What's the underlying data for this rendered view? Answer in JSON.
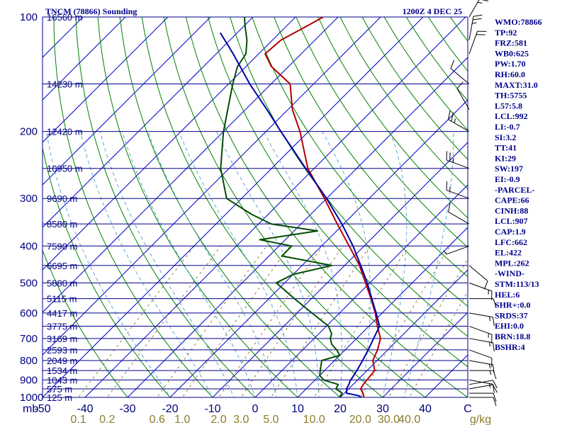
{
  "header": {
    "station": "TNCM (78866) Sounding",
    "time": "1200Z  4 DEC 25"
  },
  "indices": [
    "WMO:78866",
    "TP:92",
    "FRZ:581",
    "WB0:625",
    "PW:1.70",
    "RH:60.0",
    "MAXT:31.0",
    "TH:5755",
    "L57:5.8",
    "LCL:992",
    "LI:-0.7",
    "SI:3.2",
    "TT:41",
    "KI:29",
    "SW:197",
    "EI:-0.9",
    "-PARCEL-",
    "CAPE:66",
    "CINH:88",
    "LCL:907",
    "CAP:1.9",
    "LFC:662",
    "EL:422",
    "MPL:262",
    "-WIND-",
    "STM:113/13",
    "HEL:6",
    "SHR+:0.0",
    "SRDS:37",
    "EHI:0.0",
    "BRN:18.8",
    "BSHR:4"
  ],
  "colors": {
    "isobar": "#00008b",
    "isotherm": "#0000cd",
    "dry_adiabat": "#008000",
    "moist_adiabat": "#5fa8d8",
    "mixing_ratio": "#8b7d2a",
    "temperature": "#b20000",
    "dewpoint": "#004d00",
    "parcel": "#0000aa",
    "text": "#00008b"
  },
  "chart_data": {
    "type": "line",
    "chart_kind": "skew-T log-P sounding",
    "pressure_range_hPa": [
      100,
      1000
    ],
    "pressure_axis": "log",
    "temperature_range_C_at_1000hPa": [
      -50,
      50
    ],
    "pressure_labels": [
      "100",
      "200",
      "300",
      "400",
      "500",
      "600",
      "700",
      "800",
      "900",
      "1000"
    ],
    "pressure_levels": [
      100,
      200,
      300,
      400,
      500,
      600,
      700,
      800,
      900,
      1000
    ],
    "temperature_labels": [
      "mb",
      "-50",
      "-40",
      "-30",
      "-20",
      "-10",
      "0",
      "10",
      "20",
      "30",
      "40",
      "C"
    ],
    "temperature_ticks": [
      -50,
      -40,
      -30,
      -20,
      -10,
      0,
      10,
      20,
      30,
      40
    ],
    "mixing_ratio_labels": [
      "0.1",
      "0.2",
      "0.6",
      "1.0",
      "2.0",
      "3.0",
      "5.0",
      "10.0",
      "20.0",
      "30.0",
      "40.0",
      "g/kg"
    ],
    "mixing_ratio_values": [
      0.1,
      0.2,
      0.6,
      1.0,
      2.0,
      3.0,
      5.0,
      10.0,
      20.0,
      30.0,
      40.0
    ],
    "height_levels": [
      {
        "p": 100,
        "label": "16560 m"
      },
      {
        "p": 150,
        "label": "14230 m"
      },
      {
        "p": 200,
        "label": "12420 m"
      },
      {
        "p": 250,
        "label": "10950 m"
      },
      {
        "p": 300,
        "label": "9690 m"
      },
      {
        "p": 350,
        "label": "8580 m"
      },
      {
        "p": 400,
        "label": "7590 m"
      },
      {
        "p": 450,
        "label": "6695 m"
      },
      {
        "p": 500,
        "label": "5880 m"
      },
      {
        "p": 550,
        "label": "5115 m"
      },
      {
        "p": 600,
        "label": "4417 m"
      },
      {
        "p": 650,
        "label": "3775 m"
      },
      {
        "p": 700,
        "label": "3169 m"
      },
      {
        "p": 750,
        "label": "2593 m"
      },
      {
        "p": 800,
        "label": "2049 m"
      },
      {
        "p": 850,
        "label": "1534 m"
      },
      {
        "p": 900,
        "label": "1043 m"
      },
      {
        "p": 950,
        "label": "575 m"
      },
      {
        "p": 1000,
        "label": "125 m"
      }
    ],
    "dry_adiabats_theta_C": [
      -30,
      -20,
      -10,
      0,
      10,
      20,
      30,
      40,
      50,
      60,
      70,
      80,
      90,
      100,
      110,
      120,
      130,
      140,
      150,
      160,
      170,
      180,
      190
    ],
    "moist_adiabats_theta_w_C": [
      -20,
      -10,
      -5,
      0,
      5,
      10,
      15,
      20,
      25,
      30,
      35
    ],
    "series": [
      {
        "name": "Temperature",
        "color": "#b20000",
        "points": [
          [
            1013,
            27.0
          ],
          [
            1000,
            25.6
          ],
          [
            975,
            24.4
          ],
          [
            950,
            22.8
          ],
          [
            925,
            22.4
          ],
          [
            900,
            22.2
          ],
          [
            875,
            22.0
          ],
          [
            850,
            21.8
          ],
          [
            800,
            19.0
          ],
          [
            750,
            17.6
          ],
          [
            700,
            15.6
          ],
          [
            650,
            12.0
          ],
          [
            600,
            8.4
          ],
          [
            550,
            4.0
          ],
          [
            500,
            -1.0
          ],
          [
            450,
            -6.5
          ],
          [
            400,
            -13.5
          ],
          [
            350,
            -21.5
          ],
          [
            300,
            -30.5
          ],
          [
            250,
            -41.5
          ],
          [
            200,
            -52.0
          ],
          [
            175,
            -59.0
          ],
          [
            150,
            -65.5
          ],
          [
            135,
            -74.0
          ],
          [
            125,
            -78.5
          ],
          [
            115,
            -78.0
          ],
          [
            105,
            -75.0
          ],
          [
            100,
            -73.5
          ]
        ]
      },
      {
        "name": "Dewpoint",
        "color": "#004d00",
        "points": [
          [
            1013,
            21.0
          ],
          [
            1000,
            19.8
          ],
          [
            975,
            19.5
          ],
          [
            950,
            17.0
          ],
          [
            925,
            16.5
          ],
          [
            900,
            12.0
          ],
          [
            875,
            10.0
          ],
          [
            850,
            9.0
          ],
          [
            825,
            8.0
          ],
          [
            800,
            7.0
          ],
          [
            775,
            10.0
          ],
          [
            750,
            8.0
          ],
          [
            725,
            5.5
          ],
          [
            700,
            3.8
          ],
          [
            680,
            3.0
          ],
          [
            650,
            0.5
          ],
          [
            600,
            -6.5
          ],
          [
            550,
            -14.0
          ],
          [
            500,
            -22.0
          ],
          [
            475,
            -20.0
          ],
          [
            450,
            -13.0
          ],
          [
            425,
            -27.0
          ],
          [
            400,
            -27.0
          ],
          [
            385,
            -36.0
          ],
          [
            365,
            -24.5
          ],
          [
            350,
            -37.0
          ],
          [
            330,
            -44.0
          ],
          [
            300,
            -53.5
          ],
          [
            250,
            -62.0
          ],
          [
            200,
            -70.0
          ],
          [
            150,
            -79.0
          ],
          [
            135,
            -82.0
          ],
          [
            125,
            -83.0
          ],
          [
            115,
            -86.0
          ],
          [
            105,
            -90.0
          ],
          [
            100,
            -92.0
          ]
        ]
      },
      {
        "name": "Parcel",
        "color": "#0000aa",
        "points": [
          [
            1000,
            25.0
          ],
          [
            990,
            24.0
          ],
          [
            975,
            20.5
          ],
          [
            950,
            19.5
          ],
          [
            925,
            19.0
          ],
          [
            907,
            18.5
          ],
          [
            850,
            17.6
          ],
          [
            800,
            16.6
          ],
          [
            750,
            15.4
          ],
          [
            700,
            14.0
          ],
          [
            650,
            12.5
          ],
          [
            600,
            8.6
          ],
          [
            550,
            4.2
          ],
          [
            500,
            -0.6
          ],
          [
            450,
            -6.2
          ],
          [
            400,
            -12.6
          ],
          [
            350,
            -20.4
          ],
          [
            300,
            -30.0
          ],
          [
            250,
            -42.0
          ],
          [
            200,
            -56.5
          ],
          [
            175,
            -65.0
          ],
          [
            150,
            -75.0
          ],
          [
            125,
            -86.0
          ],
          [
            110,
            -94.0
          ]
        ]
      }
    ],
    "wind_barbs": [
      {
        "p": 1000,
        "dir": 90,
        "spd": 10
      },
      {
        "p": 975,
        "dir": 90,
        "spd": 12
      },
      {
        "p": 950,
        "dir": 80,
        "spd": 12
      },
      {
        "p": 925,
        "dir": 80,
        "spd": 10
      },
      {
        "p": 900,
        "dir": 100,
        "spd": 15
      },
      {
        "p": 850,
        "dir": 90,
        "spd": 15
      },
      {
        "p": 800,
        "dir": 100,
        "spd": 15
      },
      {
        "p": 750,
        "dir": 110,
        "spd": 12
      },
      {
        "p": 700,
        "dir": 100,
        "spd": 15
      },
      {
        "p": 650,
        "dir": 110,
        "spd": 15
      },
      {
        "p": 600,
        "dir": 100,
        "spd": 15
      },
      {
        "p": 550,
        "dir": 90,
        "spd": 10
      },
      {
        "p": 500,
        "dir": 110,
        "spd": 15
      },
      {
        "p": 450,
        "dir": 130,
        "spd": 10
      },
      {
        "p": 400,
        "dir": 250,
        "spd": 5
      },
      {
        "p": 350,
        "dir": 300,
        "spd": 10
      },
      {
        "p": 300,
        "dir": 290,
        "spd": 15
      },
      {
        "p": 250,
        "dir": 290,
        "spd": 25
      },
      {
        "p": 200,
        "dir": 300,
        "spd": 25
      },
      {
        "p": 175,
        "dir": 330,
        "spd": 10
      },
      {
        "p": 150,
        "dir": 310,
        "spd": 10
      },
      {
        "p": 125,
        "dir": 20,
        "spd": 20
      },
      {
        "p": 115,
        "dir": 10,
        "spd": 25
      },
      {
        "p": 100,
        "dir": 30,
        "spd": 25
      }
    ]
  }
}
